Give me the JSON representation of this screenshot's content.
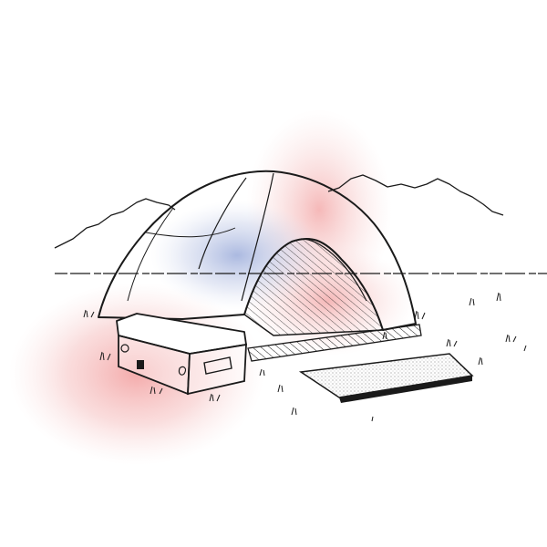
{
  "illustration": {
    "subject": "camping-dome-tent-sketch",
    "colors": {
      "ink": "#1a1a1a",
      "paper": "#ffffff",
      "wash_red": "#f2a7a7",
      "wash_pink": "#f6c9c9",
      "wash_blue": "#a9b6dc"
    }
  }
}
